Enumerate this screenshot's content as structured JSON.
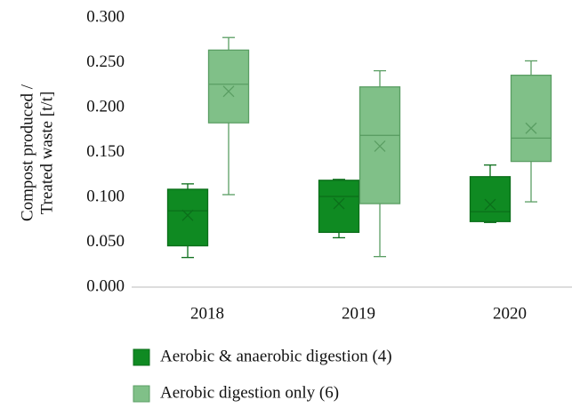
{
  "chart_data": {
    "type": "box",
    "y_label_lines": [
      "Compost produced /",
      "Treated waste [t/t]"
    ],
    "categories": [
      "2018",
      "2019",
      "2020"
    ],
    "ylim": [
      0,
      0.3
    ],
    "yticks": [
      {
        "value": 0,
        "label": "0.000"
      },
      {
        "value": 0.05,
        "label": "0.050"
      },
      {
        "value": 0.1,
        "label": "0.100"
      },
      {
        "value": 0.15,
        "label": "0.150"
      },
      {
        "value": 0.2,
        "label": "0.200"
      },
      {
        "value": 0.25,
        "label": "0.250"
      },
      {
        "value": 0.3,
        "label": "0.300"
      }
    ],
    "legend": "bottom",
    "series": [
      {
        "name": "Aerobic & anaerobic digestion (4)",
        "color": "#0f8a22",
        "edge": "#0b6e1a",
        "min": [
          0.033,
          0.055,
          0.072
        ],
        "q1": [
          0.046,
          0.061,
          0.073
        ],
        "median": [
          0.085,
          0.101,
          0.084
        ],
        "q3": [
          0.109,
          0.119,
          0.123
        ],
        "max": [
          0.115,
          0.12,
          0.136
        ],
        "mean": [
          0.08,
          0.093,
          0.092
        ]
      },
      {
        "name": "Aerobic digestion only (6)",
        "color": "#80c088",
        "edge": "#5a9e63",
        "min": [
          0.103,
          0.034,
          0.095
        ],
        "q1": [
          0.183,
          0.093,
          0.14
        ],
        "median": [
          0.226,
          0.169,
          0.166
        ],
        "q3": [
          0.264,
          0.223,
          0.236
        ],
        "max": [
          0.278,
          0.241,
          0.252
        ],
        "mean": [
          0.218,
          0.157,
          0.177
        ]
      }
    ]
  }
}
